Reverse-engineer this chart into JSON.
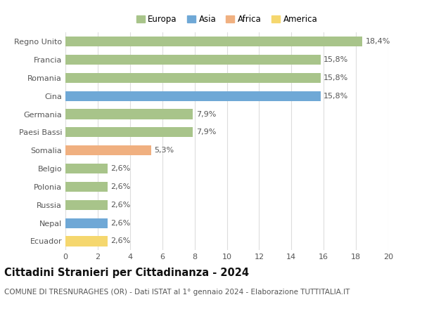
{
  "categories": [
    "Ecuador",
    "Nepal",
    "Russia",
    "Polonia",
    "Belgio",
    "Somalia",
    "Paesi Bassi",
    "Germania",
    "Cina",
    "Romania",
    "Francia",
    "Regno Unito"
  ],
  "values": [
    2.6,
    2.6,
    2.6,
    2.6,
    2.6,
    5.3,
    7.9,
    7.9,
    15.8,
    15.8,
    15.8,
    18.4
  ],
  "labels": [
    "2,6%",
    "2,6%",
    "2,6%",
    "2,6%",
    "2,6%",
    "5,3%",
    "7,9%",
    "7,9%",
    "15,8%",
    "15,8%",
    "15,8%",
    "18,4%"
  ],
  "colors": [
    "#f5d76e",
    "#6fa8d6",
    "#a8c48a",
    "#a8c48a",
    "#a8c48a",
    "#f0b080",
    "#a8c48a",
    "#a8c48a",
    "#6fa8d6",
    "#a8c48a",
    "#a8c48a",
    "#a8c48a"
  ],
  "legend_labels": [
    "Europa",
    "Asia",
    "Africa",
    "America"
  ],
  "legend_colors": [
    "#a8c48a",
    "#6fa8d6",
    "#f0b080",
    "#f5d76e"
  ],
  "title": "Cittadini Stranieri per Cittadinanza - 2024",
  "subtitle": "COMUNE DI TRESNURAGHES (OR) - Dati ISTAT al 1° gennaio 2024 - Elaborazione TUTTITALIA.IT",
  "xlim": [
    0,
    20
  ],
  "xticks": [
    0,
    2,
    4,
    6,
    8,
    10,
    12,
    14,
    16,
    18,
    20
  ],
  "background_color": "#ffffff",
  "grid_color": "#dddddd",
  "bar_height": 0.55,
  "title_fontsize": 10.5,
  "subtitle_fontsize": 7.5,
  "label_fontsize": 8,
  "tick_fontsize": 8,
  "legend_fontsize": 8.5
}
